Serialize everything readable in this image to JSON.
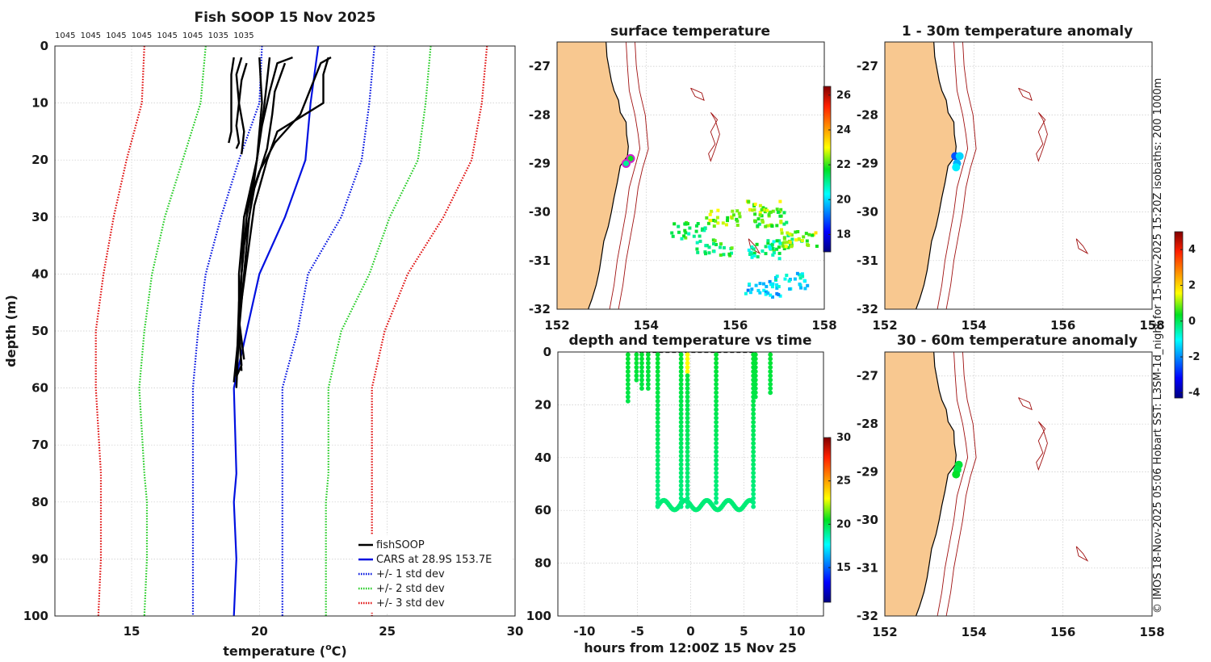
{
  "credit": "© IMOS 18-Nov-2025 05:06 Hobart SST: L3SM-1d_night for 15-Nov-2025 15:20Z isobaths: 200  1000m",
  "colors": {
    "land": "#f8c890",
    "coast": "#000000",
    "isobath": "#a01010",
    "profile": "#000000",
    "cars": "#0010e0",
    "std1": "#0010e0",
    "std2": "#22cc22",
    "std3": "#e01010",
    "marker_ring": "#d020d0"
  },
  "profile_plot": {
    "title": "Fish SOOP 15 Nov 2025",
    "top_labels": [
      "1045",
      "1045",
      "1045",
      "1045",
      "1045",
      "1045",
      "1035",
      "1035"
    ],
    "legend": [
      "fishSOOP",
      "CARS at 28.9S 153.7E",
      "+/- 1 std dev",
      "+/- 2 std dev",
      "+/- 3 std dev"
    ]
  },
  "chart_data": [
    {
      "id": "profile",
      "type": "line",
      "title": "Fish SOOP 15 Nov 2025",
      "xlabel": "temperature (°C)",
      "xlabel_main": "temperature (",
      "xlabel_sup": "o",
      "xlabel_end": "C)",
      "ylabel": "depth (m)",
      "xlim": [
        12,
        30
      ],
      "ylim": [
        100,
        0
      ],
      "xticks": [
        15,
        20,
        25,
        30
      ],
      "yticks": [
        0,
        10,
        20,
        30,
        40,
        50,
        60,
        70,
        80,
        90,
        100
      ],
      "depth": [
        0,
        10,
        20,
        30,
        40,
        50,
        60,
        75,
        80,
        90,
        100
      ],
      "series": [
        {
          "name": "CARS at 28.9S 153.7E",
          "style": "solid",
          "color": "#0010e0",
          "depth": [
            0,
            10,
            20,
            30,
            40,
            50,
            60,
            75,
            80,
            90,
            100
          ],
          "values": [
            22.3,
            22.0,
            21.8,
            21.0,
            20.0,
            19.5,
            19.0,
            19.1,
            19.0,
            19.1,
            19.0
          ]
        },
        {
          "name": "-1 std",
          "style": "dotted",
          "color": "#0010e0",
          "values": [
            20.1,
            20.0,
            19.2,
            18.5,
            17.9,
            17.6,
            17.4,
            17.4,
            17.4,
            17.4,
            17.4
          ]
        },
        {
          "name": "+1 std",
          "style": "dotted",
          "color": "#0010e0",
          "values": [
            24.5,
            24.3,
            24.0,
            23.2,
            21.9,
            21.5,
            20.9,
            20.9,
            20.9,
            20.9,
            20.9
          ]
        },
        {
          "name": "-2 std",
          "style": "dotted",
          "color": "#22cc22",
          "values": [
            17.9,
            17.7,
            17.0,
            16.3,
            15.8,
            15.5,
            15.3,
            15.5,
            15.6,
            15.6,
            15.5
          ]
        },
        {
          "name": "+2 std",
          "style": "dotted",
          "color": "#22cc22",
          "values": [
            26.7,
            26.5,
            26.2,
            25.1,
            24.3,
            23.2,
            22.7,
            22.7,
            22.6,
            22.6,
            22.6
          ]
        },
        {
          "name": "-3 std",
          "style": "dotted",
          "color": "#e01010",
          "values": [
            15.5,
            15.4,
            14.8,
            14.3,
            13.9,
            13.6,
            13.6,
            13.8,
            13.8,
            13.8,
            13.7
          ]
        },
        {
          "name": "+3 std",
          "style": "dotted",
          "color": "#e01010",
          "values": [
            28.9,
            28.7,
            28.3,
            27.2,
            25.8,
            24.9,
            24.4,
            24.4,
            24.4,
            24.4,
            24.4
          ]
        }
      ],
      "profiles": [
        {
          "depth": [
            2,
            5,
            10,
            15,
            17
          ],
          "values": [
            19.0,
            18.9,
            18.9,
            18.9,
            18.8
          ]
        },
        {
          "depth": [
            2,
            5,
            10,
            14,
            17,
            18
          ],
          "values": [
            19.3,
            19.1,
            19.2,
            19.1,
            19.2,
            19.1
          ]
        },
        {
          "depth": [
            3,
            6,
            10,
            15,
            19
          ],
          "values": [
            19.5,
            19.3,
            19.2,
            19.4,
            19.3
          ]
        },
        {
          "depth": [
            2,
            10,
            20,
            30,
            40,
            50,
            56,
            58
          ],
          "values": [
            20.0,
            20.1,
            19.9,
            19.5,
            19.3,
            19.2,
            19.3,
            19.1
          ]
        },
        {
          "depth": [
            2,
            3,
            8,
            14,
            20,
            30,
            40,
            50,
            57
          ],
          "values": [
            21.3,
            20.7,
            20.4,
            20.1,
            19.9,
            19.6,
            19.4,
            19.2,
            19.3
          ]
        },
        {
          "depth": [
            2,
            3,
            12,
            17,
            22,
            30,
            40,
            50,
            59
          ],
          "values": [
            22.8,
            22.4,
            21.6,
            20.6,
            20.0,
            19.4,
            19.3,
            19.2,
            19.0
          ]
        },
        {
          "depth": [
            2,
            5,
            10,
            15,
            20,
            28,
            38,
            48,
            55
          ],
          "values": [
            22.7,
            22.5,
            22.5,
            20.7,
            20.3,
            19.8,
            19.5,
            19.2,
            19.4
          ]
        },
        {
          "depth": [
            3,
            8,
            12,
            18,
            25,
            35,
            45,
            58
          ],
          "values": [
            21.0,
            20.6,
            20.5,
            20.3,
            19.8,
            19.4,
            19.2,
            19.1
          ]
        },
        {
          "depth": [
            2,
            10,
            20,
            30,
            40,
            50,
            60
          ],
          "values": [
            20.4,
            20.2,
            19.9,
            19.4,
            19.2,
            19.2,
            19.1
          ]
        }
      ]
    },
    {
      "id": "surface-temperature",
      "type": "heatmap",
      "title": "surface temperature",
      "xlim": [
        152,
        158
      ],
      "ylim": [
        -32,
        -26.5
      ],
      "xticks": [
        152,
        154,
        156,
        158
      ],
      "yticks": [
        -27,
        -28,
        -29,
        -30,
        -31,
        -32
      ],
      "colorbar": {
        "min": 17,
        "max": 26.5,
        "ticks": [
          18,
          20,
          22,
          24,
          26
        ]
      },
      "patches": [
        {
          "lon": 156.6,
          "lat": -29.9,
          "v": 22.5
        },
        {
          "lon": 156.8,
          "lat": -30.1,
          "v": 22.0
        },
        {
          "lon": 154.9,
          "lat": -30.35,
          "v": 21.5
        },
        {
          "lon": 155.7,
          "lat": -30.1,
          "v": 22.5
        },
        {
          "lon": 157.1,
          "lat": -30.6,
          "v": 21.8
        },
        {
          "lon": 157.4,
          "lat": -30.5,
          "v": 22.6
        },
        {
          "lon": 156.6,
          "lat": -30.75,
          "v": 21.0
        },
        {
          "lon": 157.2,
          "lat": -31.4,
          "v": 20.3
        },
        {
          "lon": 156.6,
          "lat": -31.55,
          "v": 19.8
        },
        {
          "lon": 155.5,
          "lat": -30.7,
          "v": 21.5
        }
      ],
      "points": [
        {
          "lon": 153.65,
          "lat": -28.9,
          "v": 21.8
        },
        {
          "lon": 153.55,
          "lat": -29.0,
          "v": 21.0
        }
      ]
    },
    {
      "id": "depth-time",
      "type": "scatter",
      "title": "depth and temperature vs time",
      "xlabel": "hours from 12:00Z 15 Nov 25",
      "xlim": [
        -12.5,
        12.5
      ],
      "ylim": [
        100,
        0
      ],
      "xticks": [
        -10,
        -5,
        0,
        5,
        10
      ],
      "yticks": [
        0,
        20,
        40,
        60,
        80,
        100
      ],
      "colorbar": {
        "min": 11,
        "max": 30,
        "ticks": [
          15,
          20,
          25,
          30
        ]
      },
      "casts": [
        {
          "t": -5.9,
          "bottom": 19
        },
        {
          "t": -5.1,
          "bottom": 12
        },
        {
          "t": -4.6,
          "bottom": 15
        },
        {
          "t": -4.0,
          "bottom": 14
        },
        {
          "t": -3.1,
          "bottom": 59
        },
        {
          "t": -0.9,
          "bottom": 59
        },
        {
          "t": -0.3,
          "bottom": 59
        },
        {
          "t": 2.4,
          "bottom": 58
        },
        {
          "t": 5.9,
          "bottom": 59
        },
        {
          "t": 6.1,
          "bottom": 17
        },
        {
          "t": 7.5,
          "bottom": 16
        }
      ]
    },
    {
      "id": "anomaly-1-30m",
      "type": "scatter",
      "title": "1 - 30m temperature anomaly",
      "xlim": [
        152,
        158
      ],
      "ylim": [
        -32,
        -26.5
      ],
      "xticks": [
        152,
        154,
        156,
        158
      ],
      "yticks": [
        -27,
        -28,
        -29,
        -30,
        -31,
        -32
      ],
      "colorbar": {
        "min": -4.3,
        "max": 5,
        "ticks": [
          -4,
          -2,
          0,
          2,
          4
        ]
      },
      "points": [
        {
          "lon": 153.58,
          "lat": -28.85,
          "v": -2.5
        },
        {
          "lon": 153.68,
          "lat": -28.85,
          "v": -1.4
        },
        {
          "lon": 153.62,
          "lat": -29.0,
          "v": -1.7
        },
        {
          "lon": 153.6,
          "lat": -29.08,
          "v": -1.2
        }
      ]
    },
    {
      "id": "anomaly-30-60m",
      "type": "scatter",
      "title": "30 - 60m temperature anomaly",
      "xlim": [
        152,
        158
      ],
      "ylim": [
        -32,
        -26.5
      ],
      "xticks": [
        152,
        154,
        156,
        158
      ],
      "yticks": [
        -27,
        -28,
        -29,
        -30,
        -31,
        -32
      ],
      "points": [
        {
          "lon": 153.66,
          "lat": -28.85,
          "v": 0.2
        },
        {
          "lon": 153.63,
          "lat": -28.95,
          "v": 0.1
        },
        {
          "lon": 153.6,
          "lat": -29.05,
          "v": 0.3
        }
      ]
    }
  ]
}
